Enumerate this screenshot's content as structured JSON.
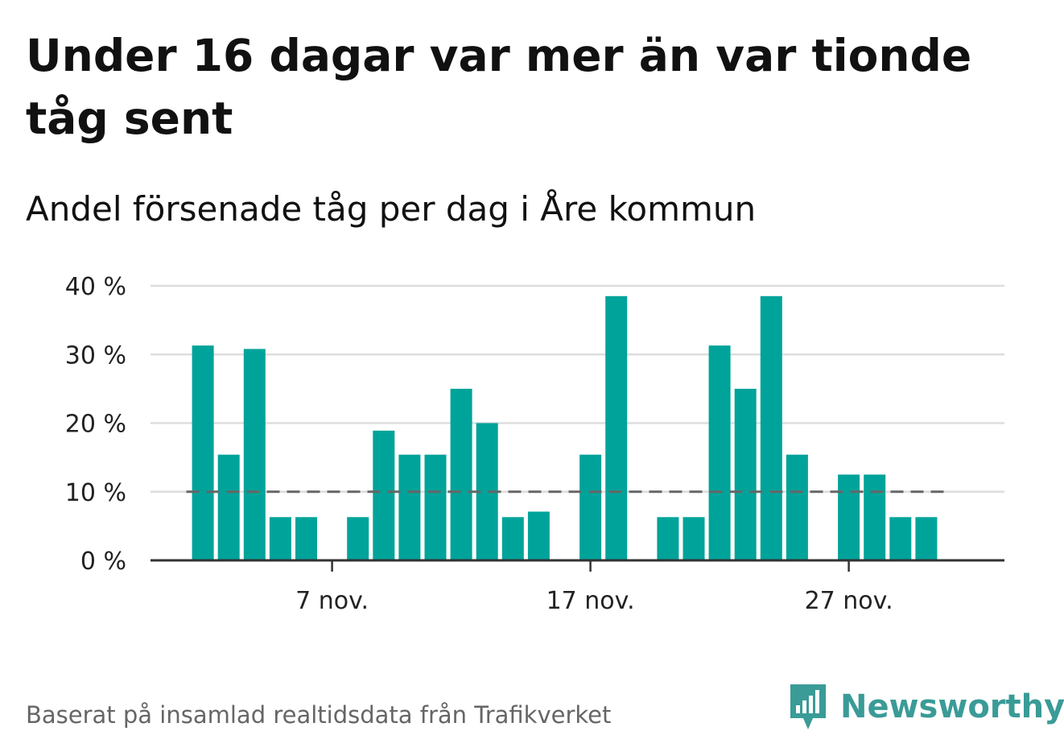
{
  "header": {
    "title": "Under 16 dagar var mer än var tionde tåg sent",
    "subtitle": "Andel försenade tåg per dag i Åre kommun"
  },
  "footer": {
    "source": "Baserat på insamlad realtidsdata från Trafikverket",
    "brand": "Newsworthy",
    "brand_icon": "bar-chart-speech-bubble-icon"
  },
  "colors": {
    "bar": "#00a39a",
    "reference_line": "#666666",
    "grid": "#dddddd",
    "axis": "#333333",
    "brand": "#3a9b97"
  },
  "chart_data": {
    "type": "bar",
    "title": "Under 16 dagar var mer än var tionde tåg sent",
    "subtitle": "Andel försenade tåg per dag i Åre kommun",
    "xlabel": "",
    "ylabel": "",
    "ylim": [
      0,
      40
    ],
    "y_ticks": [
      {
        "value": 0,
        "label": "0 %"
      },
      {
        "value": 10,
        "label": "10 %"
      },
      {
        "value": 20,
        "label": "20 %"
      },
      {
        "value": 30,
        "label": "30 %"
      },
      {
        "value": 40,
        "label": "40 %"
      }
    ],
    "x_ticks": [
      {
        "day": 7,
        "label": "7 nov."
      },
      {
        "day": 17,
        "label": "17 nov."
      },
      {
        "day": 27,
        "label": "27 nov."
      }
    ],
    "grid": true,
    "reference_line": {
      "value": 10,
      "style": "dashed"
    },
    "days": [
      1,
      2,
      3,
      4,
      5,
      6,
      7,
      8,
      9,
      10,
      11,
      12,
      13,
      14,
      15,
      16,
      17,
      18,
      19,
      20,
      21,
      22,
      23,
      24,
      25,
      26,
      27,
      28,
      29,
      30
    ],
    "values": [
      0,
      31.3,
      15.4,
      30.8,
      6.3,
      6.3,
      0,
      6.3,
      18.9,
      15.4,
      15.4,
      25.0,
      20.0,
      6.3,
      7.1,
      0,
      15.4,
      38.5,
      0,
      6.3,
      6.3,
      31.3,
      25.0,
      38.5,
      15.4,
      0,
      12.5,
      12.5,
      6.3,
      6.3
    ]
  }
}
